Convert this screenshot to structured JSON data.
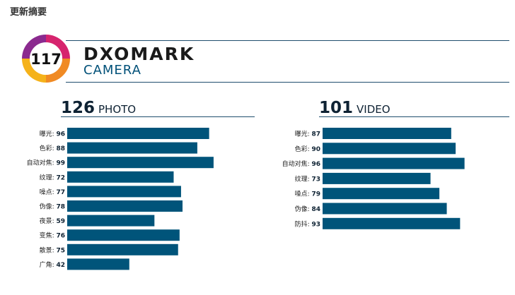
{
  "header": {
    "title": "更新摘要"
  },
  "brand": {
    "score": "117",
    "name": "DXOMARK",
    "subtitle": "CAMERA",
    "colors": {
      "ring_purple": "#8b2a8f",
      "ring_pink": "#d6246e",
      "ring_orange": "#f08a24",
      "ring_yellow": "#f5b21a",
      "bar": "#00547a"
    }
  },
  "chart_data": [
    {
      "type": "bar",
      "orientation": "horizontal",
      "section_score": "126",
      "section_name": "PHOTO",
      "categories": [
        "曝光",
        "色彩",
        "自动对焦",
        "纹理",
        "噪点",
        "伪像",
        "夜景",
        "变焦",
        "散景",
        "广角"
      ],
      "values": [
        96,
        88,
        99,
        72,
        77,
        78,
        59,
        76,
        75,
        42
      ],
      "value_suffix": ":",
      "xlim": [
        0,
        100
      ],
      "grid": false,
      "legend": "none"
    },
    {
      "type": "bar",
      "orientation": "horizontal",
      "section_score": "101",
      "section_name": "VIDEO",
      "categories": [
        "曝光",
        "色彩",
        "自动对焦",
        "纹理",
        "噪点",
        "伪像",
        "防抖"
      ],
      "values": [
        87,
        90,
        96,
        73,
        79,
        84,
        93
      ],
      "value_suffix": ":",
      "xlim": [
        0,
        100
      ],
      "grid": false,
      "legend": "none"
    }
  ]
}
